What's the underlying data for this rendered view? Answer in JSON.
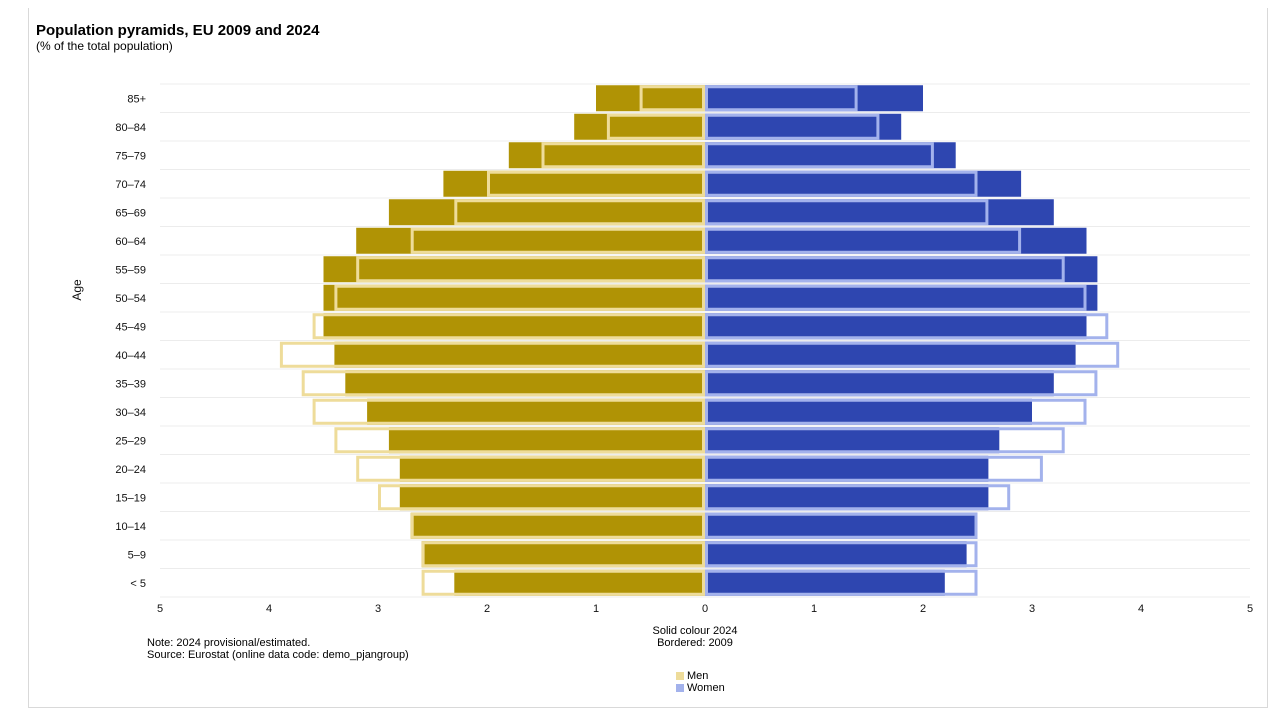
{
  "chart_data": {
    "type": "bar",
    "orientation": "horizontal",
    "title": "Population pyramids, EU 2009 and 2024",
    "subtitle": "(% of the total population)",
    "ylabel": "Age",
    "xlabel_line1": "Solid colour 2024",
    "xlabel_line2": "Bordered: 2009",
    "xlim": [
      -5,
      5
    ],
    "xticks": [
      "5",
      "4",
      "3",
      "2",
      "1",
      "0",
      "1",
      "2",
      "3",
      "4",
      "5"
    ],
    "categories": [
      "< 5",
      "5–9",
      "10–14",
      "15–19",
      "20–24",
      "25–29",
      "30–34",
      "35–39",
      "40–44",
      "45–49",
      "50–54",
      "55–59",
      "60–64",
      "65–69",
      "70–74",
      "75–79",
      "80–84",
      "85+"
    ],
    "series": [
      {
        "name": "Men",
        "year": "2024",
        "style": "solid",
        "values": [
          2.3,
          2.6,
          2.7,
          2.8,
          2.8,
          2.9,
          3.1,
          3.3,
          3.4,
          3.5,
          3.5,
          3.5,
          3.2,
          2.9,
          2.4,
          1.8,
          1.2,
          1.0
        ]
      },
      {
        "name": "Women",
        "year": "2024",
        "style": "solid",
        "values": [
          2.2,
          2.4,
          2.5,
          2.6,
          2.6,
          2.7,
          3.0,
          3.2,
          3.4,
          3.5,
          3.6,
          3.6,
          3.5,
          3.2,
          2.9,
          2.3,
          1.8,
          2.0
        ]
      },
      {
        "name": "Men",
        "year": "2009",
        "style": "bordered",
        "values": [
          2.6,
          2.6,
          2.7,
          3.0,
          3.2,
          3.4,
          3.6,
          3.7,
          3.9,
          3.6,
          3.4,
          3.2,
          2.7,
          2.3,
          2.0,
          1.5,
          0.9,
          0.6
        ]
      },
      {
        "name": "Women",
        "year": "2009",
        "style": "bordered",
        "values": [
          2.5,
          2.5,
          2.5,
          2.8,
          3.1,
          3.3,
          3.5,
          3.6,
          3.8,
          3.7,
          3.5,
          3.3,
          2.9,
          2.6,
          2.5,
          2.1,
          1.6,
          1.4
        ]
      }
    ],
    "colors": {
      "men_solid": "#b09305",
      "men_border": "#eedc9a",
      "women_solid": "#2e46b0",
      "women_border": "#a3b2ec"
    },
    "grid": true,
    "legend_position": "bottom-center",
    "legend": [
      "Men",
      "Women"
    ]
  },
  "notes": {
    "note": "Note: 2024 provisional/estimated.",
    "source": "Source: Eurostat (online data code: demo_pjangroup)"
  }
}
